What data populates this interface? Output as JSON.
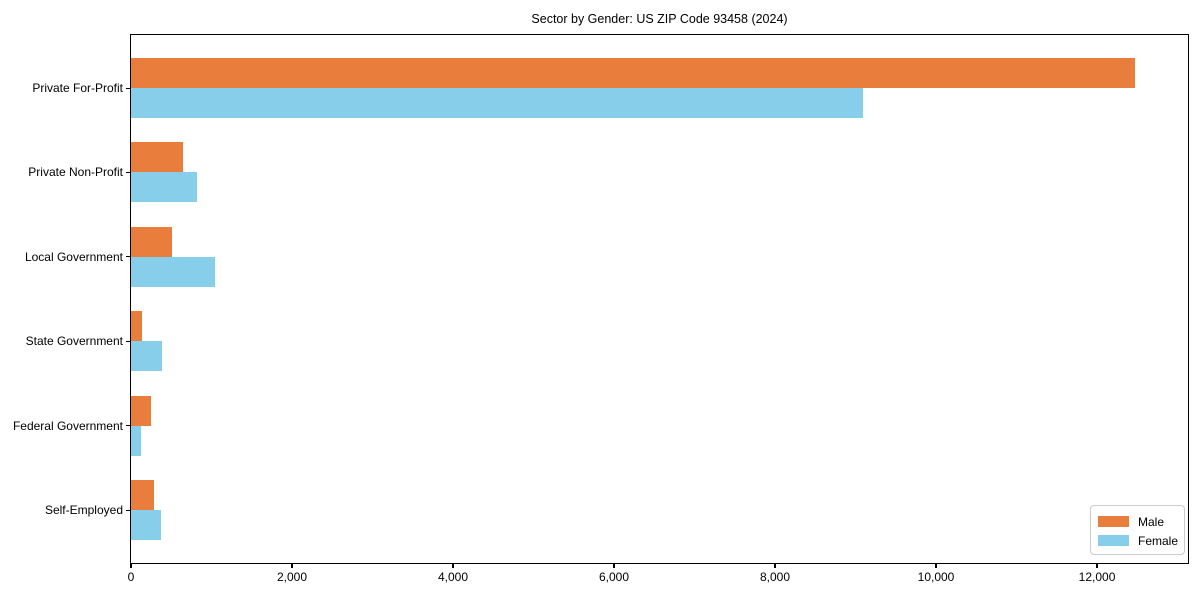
{
  "chart_data": {
    "type": "bar",
    "orientation": "horizontal",
    "title": "Sector by Gender: US ZIP Code 93458 (2024)",
    "xlabel": "",
    "ylabel": "",
    "categories": [
      "Private For-Profit",
      "Private Non-Profit",
      "Local Government",
      "State Government",
      "Federal Government",
      "Self-Employed"
    ],
    "series": [
      {
        "name": "Male",
        "color": "#e87d3c",
        "values": [
          12470,
          650,
          510,
          140,
          250,
          290
        ]
      },
      {
        "name": "Female",
        "color": "#87ceeb",
        "values": [
          9090,
          820,
          1040,
          390,
          120,
          370
        ]
      }
    ],
    "xlim": [
      0,
      13130
    ],
    "x_ticks": [
      0,
      2000,
      4000,
      6000,
      8000,
      10000,
      12000
    ],
    "x_tick_labels": [
      "0",
      "2,000",
      "4,000",
      "6,000",
      "8,000",
      "10,000",
      "12,000"
    ],
    "grid": false,
    "legend_position": "lower right"
  },
  "legend": {
    "items": [
      {
        "label": "Male",
        "color": "#e87d3c"
      },
      {
        "label": "Female",
        "color": "#87ceeb"
      }
    ]
  }
}
